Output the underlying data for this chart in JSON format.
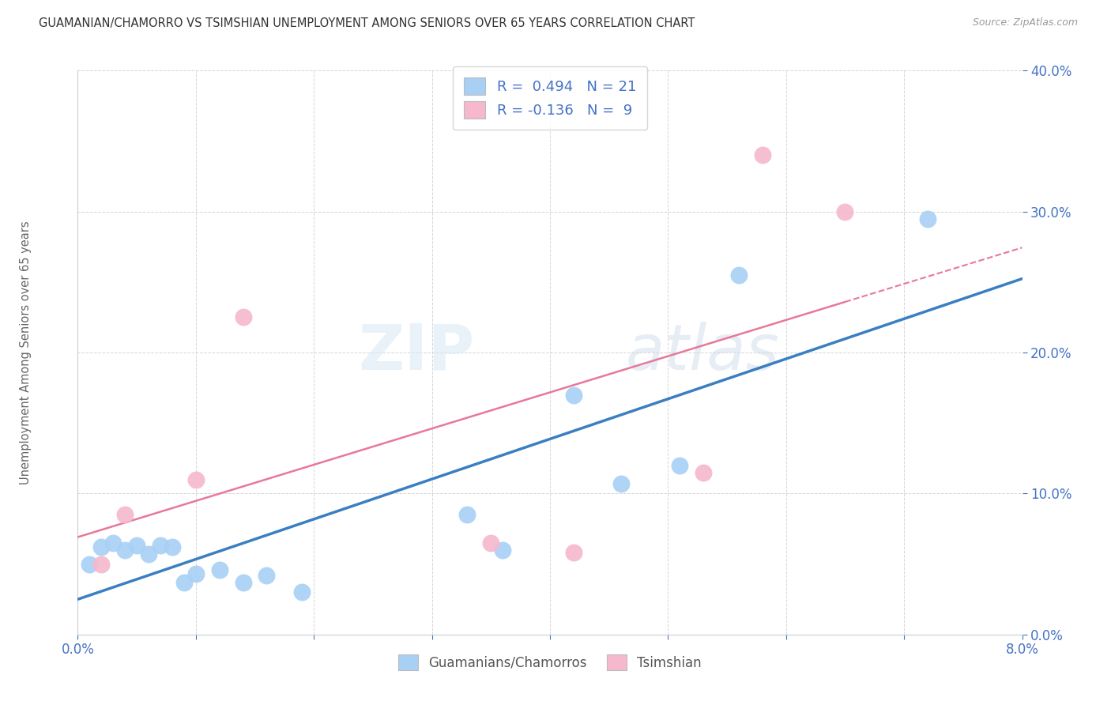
{
  "title": "GUAMANIAN/CHAMORRO VS TSIMSHIAN UNEMPLOYMENT AMONG SENIORS OVER 65 YEARS CORRELATION CHART",
  "source": "Source: ZipAtlas.com",
  "ylabel": "Unemployment Among Seniors over 65 years",
  "xlim": [
    0.0,
    0.08
  ],
  "ylim": [
    0.0,
    0.4
  ],
  "xtick_vals": [
    0.0,
    0.01,
    0.02,
    0.03,
    0.04,
    0.05,
    0.06,
    0.07,
    0.08
  ],
  "xtick_show": [
    0.0,
    0.08
  ],
  "ytick_vals": [
    0.0,
    0.1,
    0.2,
    0.3,
    0.4
  ],
  "blue_color": "#a8d0f5",
  "pink_color": "#f5b8cc",
  "blue_line_color": "#3a7fc1",
  "pink_line_color": "#e8789a",
  "R_blue": 0.494,
  "N_blue": 21,
  "R_pink": -0.136,
  "N_pink": 9,
  "guamanian_x": [
    0.001,
    0.002,
    0.003,
    0.004,
    0.005,
    0.006,
    0.007,
    0.008,
    0.009,
    0.01,
    0.012,
    0.014,
    0.016,
    0.019,
    0.033,
    0.036,
    0.042,
    0.046,
    0.051,
    0.056,
    0.072
  ],
  "guamanian_y": [
    0.05,
    0.062,
    0.065,
    0.06,
    0.063,
    0.057,
    0.063,
    0.062,
    0.037,
    0.043,
    0.046,
    0.037,
    0.042,
    0.03,
    0.085,
    0.06,
    0.17,
    0.107,
    0.12,
    0.255,
    0.295
  ],
  "tsimshian_x": [
    0.002,
    0.004,
    0.01,
    0.014,
    0.035,
    0.042,
    0.053,
    0.058,
    0.065
  ],
  "tsimshian_y": [
    0.05,
    0.085,
    0.11,
    0.225,
    0.065,
    0.058,
    0.115,
    0.34,
    0.3
  ],
  "watermark_zip": "ZIP",
  "watermark_atlas": "atlas",
  "background_color": "#ffffff"
}
